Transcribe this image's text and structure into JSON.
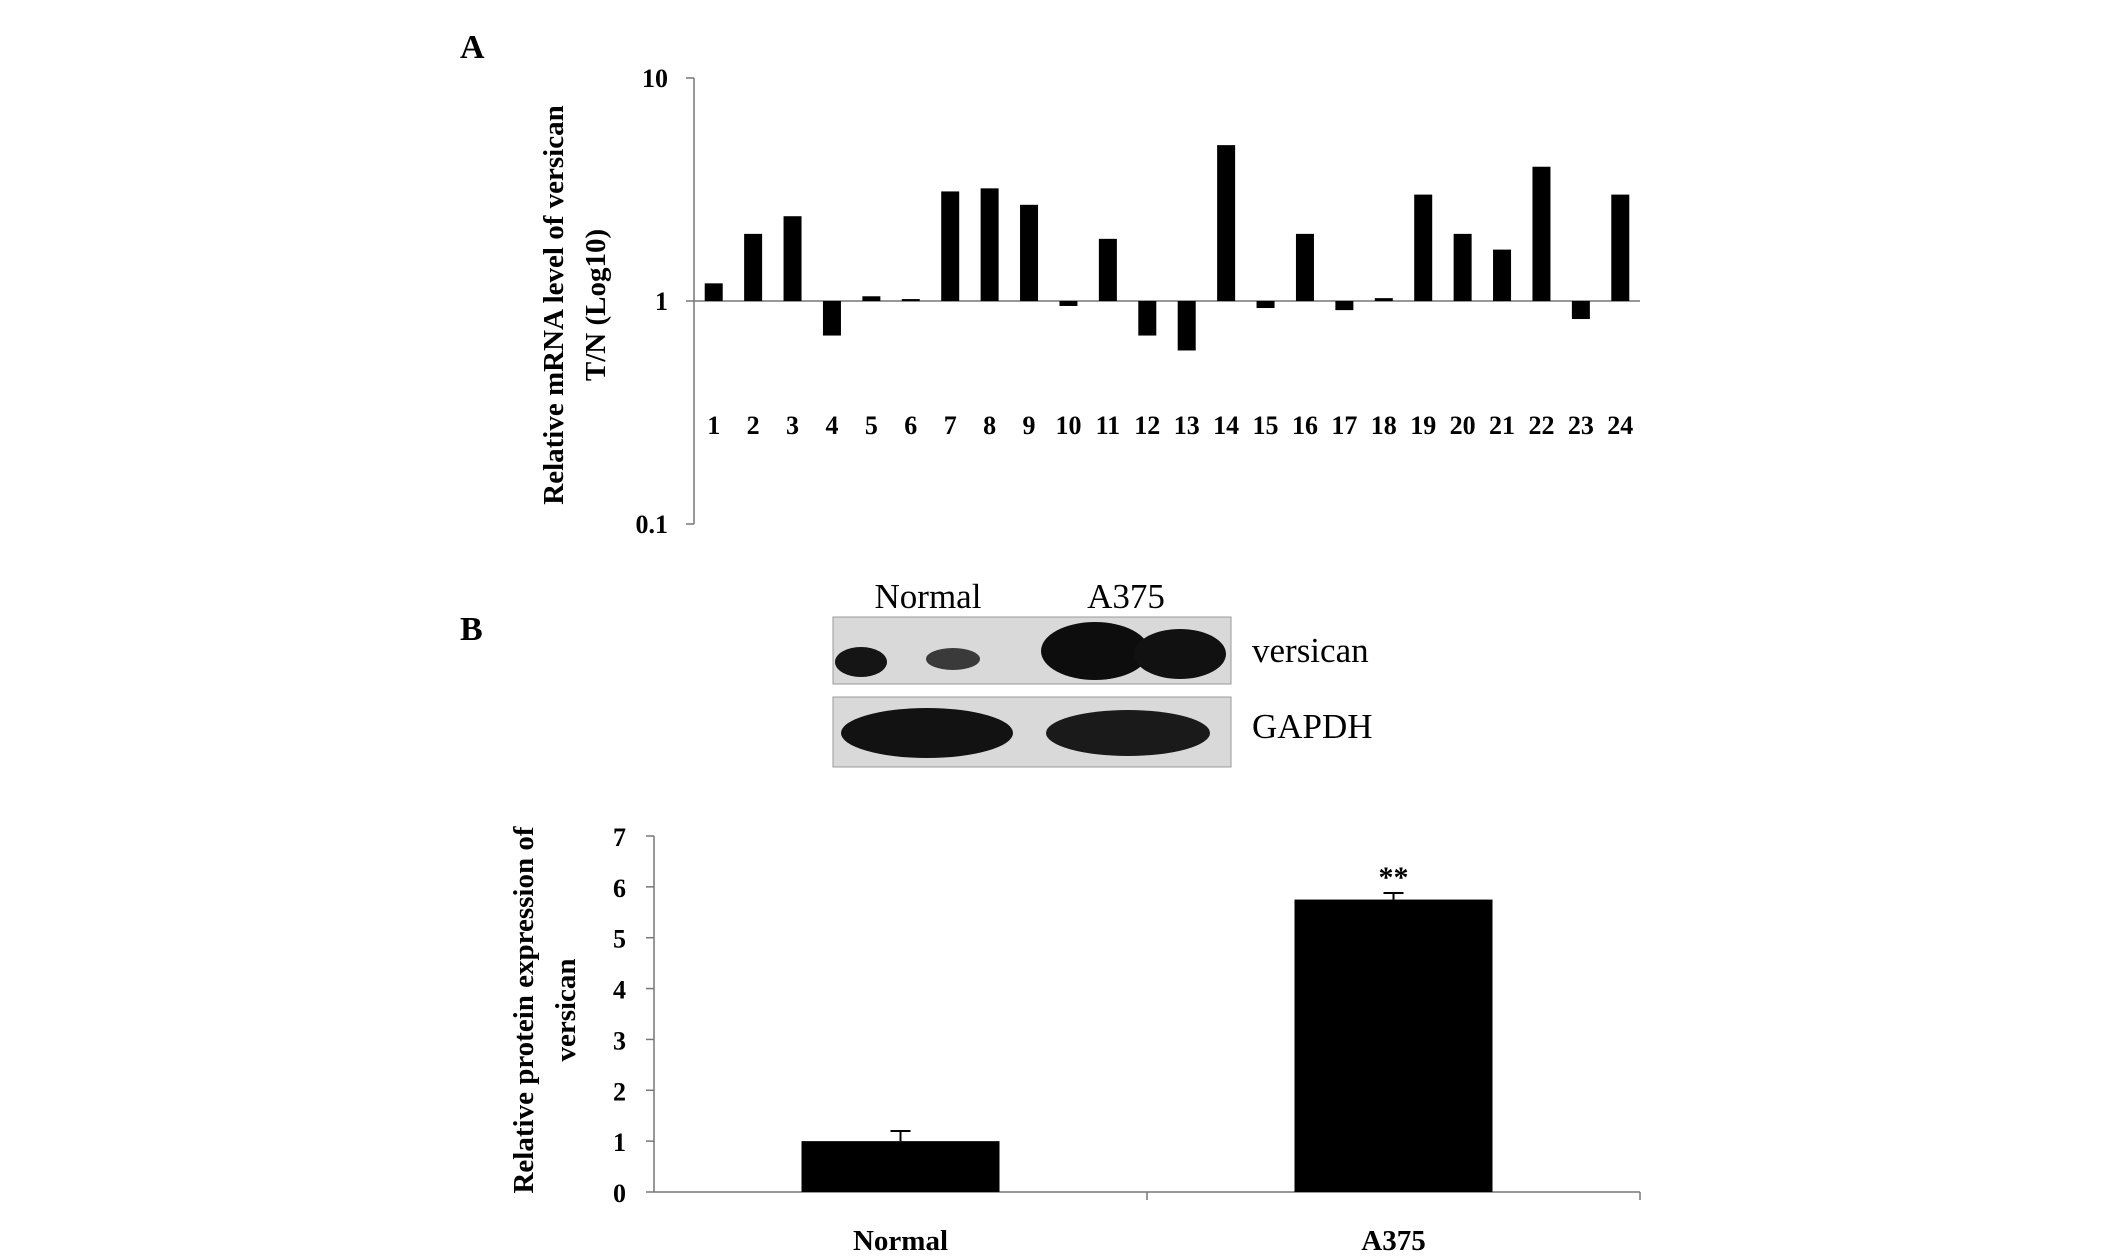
{
  "panel_a_letter": "A",
  "panel_b_letter": "B",
  "blot": {
    "lanes": [
      "Normal",
      "A375"
    ],
    "rows": [
      "versican",
      "GAPDH"
    ]
  },
  "chart_data": [
    {
      "type": "bar",
      "panel": "A",
      "ylabel": "Relative mRNA level of versican T/N (Log10)",
      "ylabel_lines": [
        "Relative mRNA level of versican",
        "T/N (Log10)"
      ],
      "xlabel": "",
      "yscale": "log10",
      "ylim": [
        0.1,
        10
      ],
      "yticks": [
        "0.1",
        "1",
        "10"
      ],
      "baseline": 1,
      "grid": false,
      "categories": [
        "1",
        "2",
        "3",
        "4",
        "5",
        "6",
        "7",
        "8",
        "9",
        "10",
        "11",
        "12",
        "13",
        "14",
        "15",
        "16",
        "17",
        "18",
        "19",
        "20",
        "21",
        "22",
        "23",
        "24"
      ],
      "values": [
        1.2,
        2.0,
        2.4,
        0.7,
        1.05,
        1.02,
        3.1,
        3.2,
        2.7,
        0.95,
        1.9,
        0.7,
        0.6,
        5.0,
        0.93,
        2.0,
        0.91,
        1.03,
        3.0,
        2.0,
        1.7,
        4.0,
        0.83,
        3.0
      ]
    },
    {
      "type": "bar",
      "panel": "B",
      "ylabel": "Relative protein expression of versican",
      "ylabel_lines": [
        "Relative protein expression of",
        "versican"
      ],
      "xlabel": "",
      "ylim": [
        0,
        7
      ],
      "yticks": [
        "0",
        "1",
        "2",
        "3",
        "4",
        "5",
        "6",
        "7"
      ],
      "grid": false,
      "categories": [
        "Normal",
        "A375"
      ],
      "values": [
        1.0,
        5.75
      ],
      "errors": [
        0.2,
        0.13
      ],
      "annotations": [
        "",
        "**"
      ]
    }
  ]
}
